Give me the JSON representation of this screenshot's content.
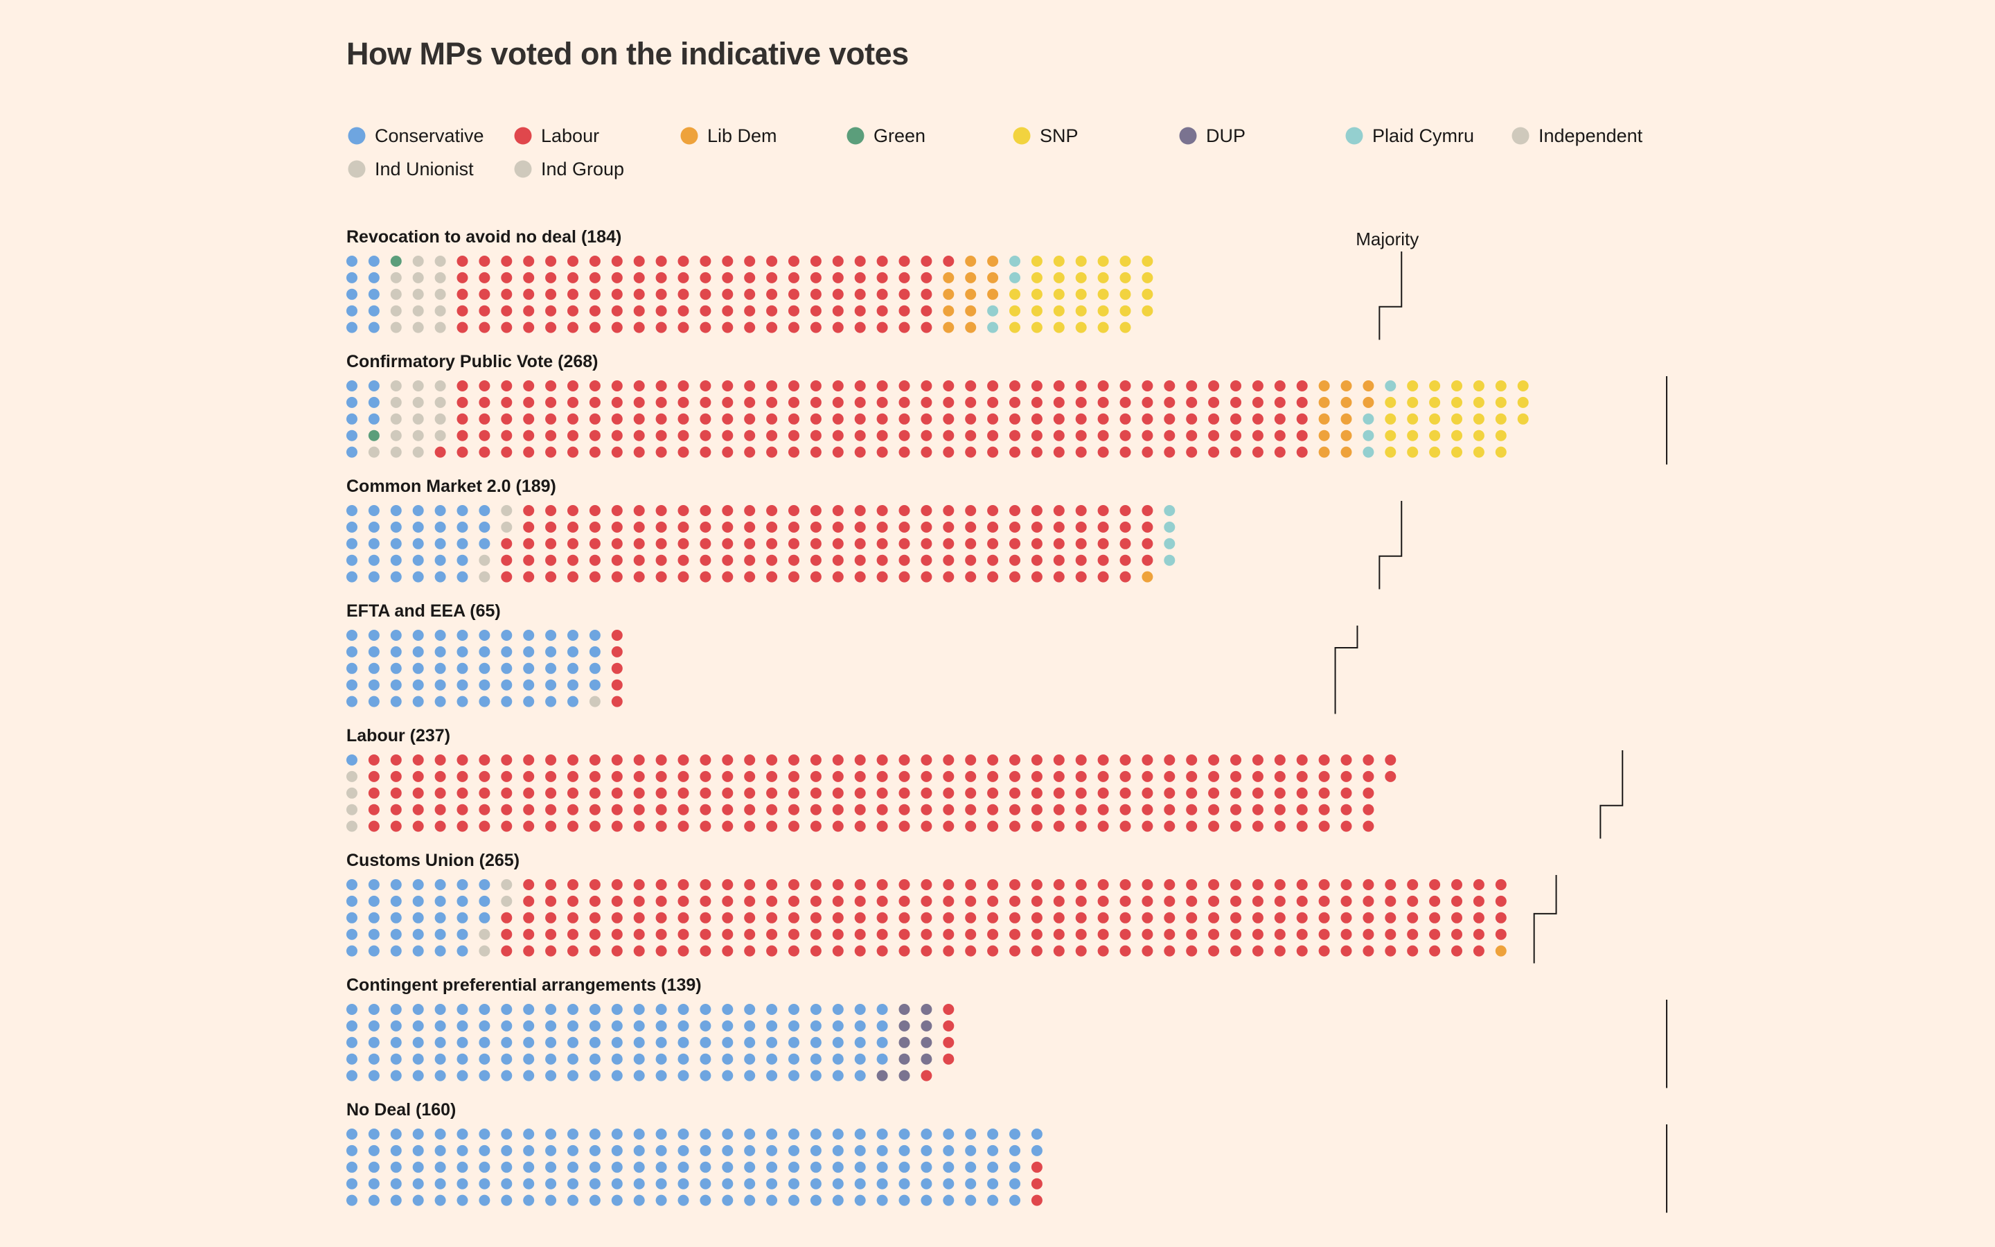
{
  "title": "How MPs voted on the indicative votes",
  "majority_label": "Majority",
  "legend": [
    {
      "key": "con",
      "label": "Conservative",
      "color": "#6ea5e0"
    },
    {
      "key": "lab",
      "label": "Labour",
      "color": "#e0474c"
    },
    {
      "key": "ld",
      "label": "Lib Dem",
      "color": "#eea23b"
    },
    {
      "key": "grn",
      "label": "Green",
      "color": "#5b9e7b"
    },
    {
      "key": "snp",
      "label": "SNP",
      "color": "#f2d33f"
    },
    {
      "key": "dup",
      "label": "DUP",
      "color": "#7a7390"
    },
    {
      "key": "pc",
      "label": "Plaid Cymru",
      "color": "#94cfcf"
    },
    {
      "key": "ind",
      "label": "Independent",
      "color": "#cfc9bc"
    },
    {
      "key": "indu",
      "label": "Ind Unionist",
      "color": "#cfc9bc"
    },
    {
      "key": "ig",
      "label": "Ind Group",
      "color": "#cfc9bc"
    }
  ],
  "chart_data": {
    "type": "dot-matrix",
    "title": "How MPs voted on the indicative votes",
    "dots_per_column": 5,
    "votes": [
      {
        "label": "Revocation to avoid no deal (184)",
        "total": 184,
        "parties": [
          {
            "key": "con",
            "n": 10
          },
          {
            "key": "grn",
            "n": 1
          },
          {
            "key": "ind",
            "n": 14
          },
          {
            "key": "lab",
            "n": 111
          },
          {
            "key": "ld",
            "n": 12
          },
          {
            "key": "pc",
            "n": 4
          },
          {
            "key": "snp",
            "n": 32
          }
        ],
        "majority": 238
      },
      {
        "label": "Confirmatory Public Vote (268)",
        "total": 268,
        "parties": [
          {
            "key": "con",
            "n": 8
          },
          {
            "key": "grn",
            "n": 1
          },
          {
            "key": "ind",
            "n": 15
          },
          {
            "key": "lab",
            "n": 196
          },
          {
            "key": "ld",
            "n": 12
          },
          {
            "key": "pc",
            "n": 4
          },
          {
            "key": "snp",
            "n": 32
          }
        ],
        "majority": 295
      },
      {
        "label": "Common Market 2.0 (189)",
        "total": 189,
        "parties": [
          {
            "key": "con",
            "n": 33
          },
          {
            "key": "ind",
            "n": 4
          },
          {
            "key": "lab",
            "n": 147
          },
          {
            "key": "ld",
            "n": 1
          },
          {
            "key": "pc",
            "n": 4
          }
        ],
        "majority": 238
      },
      {
        "label": "EFTA and EEA (65)",
        "total": 65,
        "parties": [
          {
            "key": "con",
            "n": 59
          },
          {
            "key": "ind",
            "n": 1
          },
          {
            "key": "lab",
            "n": 5
          }
        ],
        "majority": 226
      },
      {
        "label": "Labour (237)",
        "total": 237,
        "parties": [
          {
            "key": "con",
            "n": 1
          },
          {
            "key": "ind",
            "n": 4
          },
          {
            "key": "lab",
            "n": 232
          }
        ],
        "majority": 288
      },
      {
        "label": "Customs Union (265)",
        "total": 265,
        "parties": [
          {
            "key": "con",
            "n": 33
          },
          {
            "key": "ind",
            "n": 4
          },
          {
            "key": "lab",
            "n": 227
          },
          {
            "key": "ld",
            "n": 1
          }
        ],
        "majority": 272
      },
      {
        "label": "Contingent preferential arrangements (139)",
        "total": 139,
        "parties": [
          {
            "key": "con",
            "n": 124
          },
          {
            "key": "dup",
            "n": 10
          },
          {
            "key": "lab",
            "n": 5
          }
        ],
        "majority": 295
      },
      {
        "label": "No Deal (160)",
        "total": 160,
        "parties": [
          {
            "key": "con",
            "n": 157
          },
          {
            "key": "lab",
            "n": 3
          }
        ],
        "majority": 295
      }
    ]
  }
}
